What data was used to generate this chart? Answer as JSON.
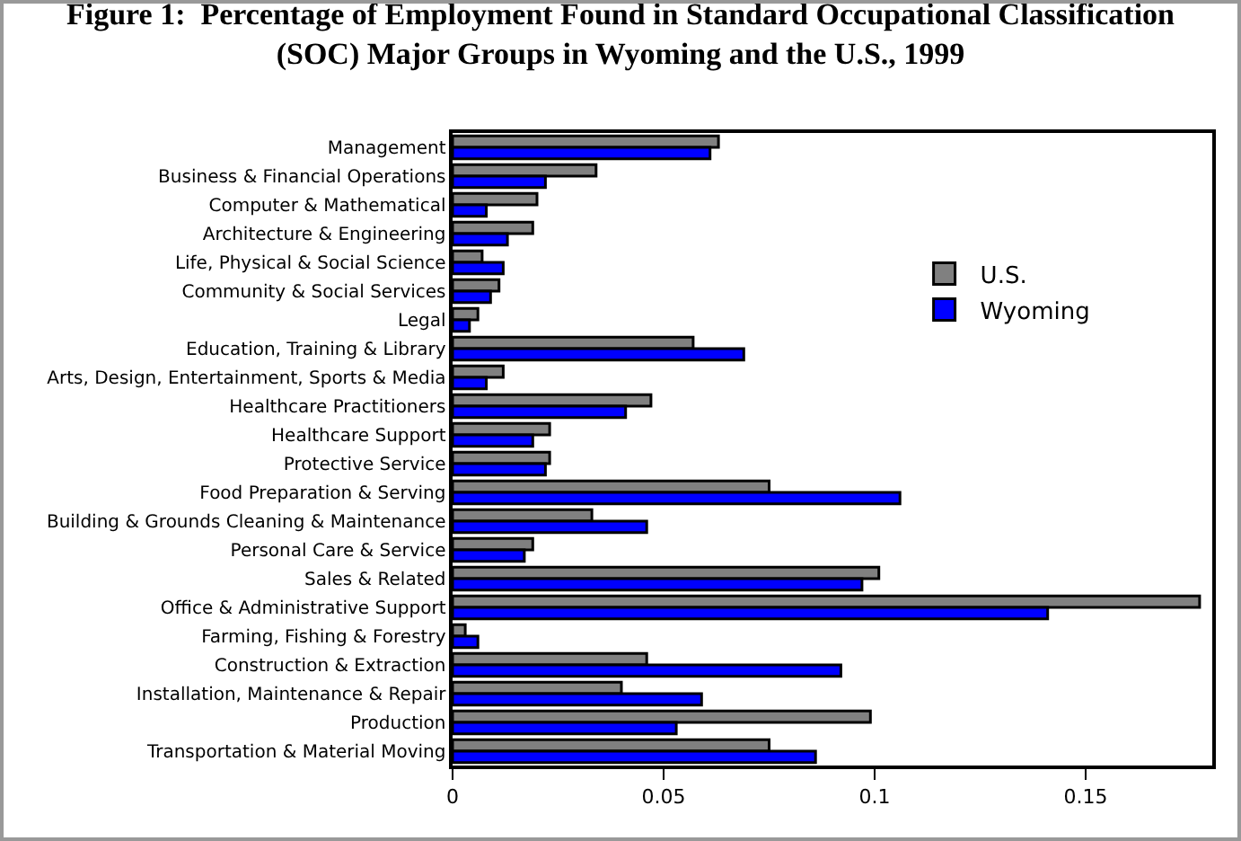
{
  "chart_data": {
    "type": "bar",
    "orientation": "horizontal",
    "title": "Figure 1:  Percentage of Employment Found in Standard Occupational Classification (SOC) Major Groups in Wyoming and the U.S., 1999",
    "categories": [
      "Management",
      "Business & Financial Operations",
      "Computer & Mathematical",
      "Architecture & Engineering",
      "Life, Physical & Social Science",
      "Community & Social Services",
      "Legal",
      "Education, Training & Library",
      "Arts, Design, Entertainment, Sports & Media",
      "Healthcare Practitioners",
      "Healthcare Support",
      "Protective Service",
      "Food Preparation & Serving",
      "Building & Grounds Cleaning & Maintenance",
      "Personal Care & Service",
      "Sales & Related",
      "Office & Administrative Support",
      "Farming, Fishing & Forestry",
      "Construction & Extraction",
      "Installation, Maintenance & Repair",
      "Production",
      "Transportation & Material Moving"
    ],
    "series": [
      {
        "name": "U.S.",
        "color": "#808080",
        "values": [
          0.063,
          0.034,
          0.02,
          0.019,
          0.007,
          0.011,
          0.006,
          0.057,
          0.012,
          0.047,
          0.023,
          0.023,
          0.075,
          0.033,
          0.019,
          0.101,
          0.177,
          0.003,
          0.046,
          0.04,
          0.099,
          0.075
        ]
      },
      {
        "name": "Wyoming",
        "color": "#0000ff",
        "values": [
          0.061,
          0.022,
          0.008,
          0.013,
          0.012,
          0.009,
          0.004,
          0.069,
          0.008,
          0.041,
          0.019,
          0.022,
          0.106,
          0.046,
          0.017,
          0.097,
          0.141,
          0.006,
          0.092,
          0.059,
          0.053,
          0.086
        ]
      }
    ],
    "xlim": [
      0,
      0.18
    ],
    "xticks": [
      0,
      0.05,
      0.1,
      0.15
    ],
    "grid": false,
    "legend": "top right"
  }
}
